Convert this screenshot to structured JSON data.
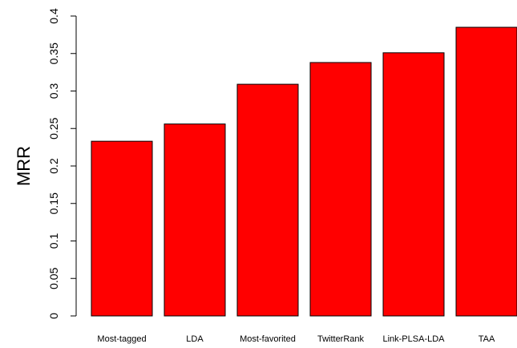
{
  "chart_data": {
    "type": "bar",
    "title": "",
    "xlabel": "",
    "ylabel": "MRR",
    "categories": [
      "Most-tagged",
      "LDA",
      "Most-favorited",
      "TwitterRank",
      "Link-PLSA-LDA",
      "TAA"
    ],
    "values": [
      0.233,
      0.256,
      0.309,
      0.338,
      0.351,
      0.385
    ],
    "ylim": [
      0,
      0.4
    ],
    "yticks": [
      "0",
      "0.05",
      "0.1",
      "0.15",
      "0.2",
      "0.25",
      "0.3",
      "0.35",
      "0.4"
    ],
    "bar_color": "#ff0000",
    "grid": false,
    "legend": "none"
  }
}
